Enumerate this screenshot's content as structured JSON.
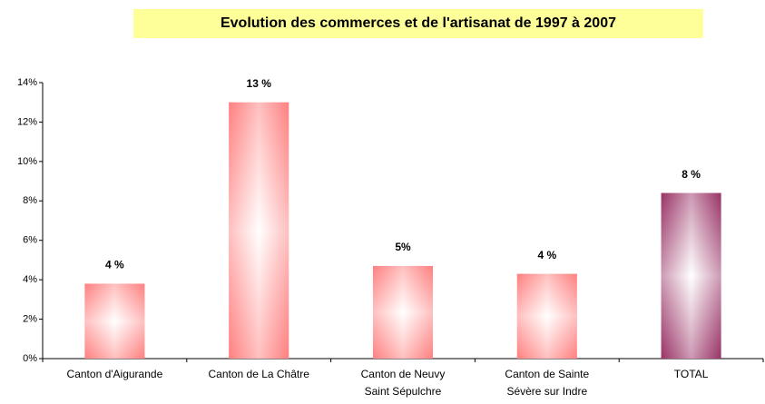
{
  "chart_data": {
    "type": "bar",
    "title": "Evolution des commerces et de l'artisanat de 1997 à 2007",
    "categories": [
      [
        "Canton d'Aigurande"
      ],
      [
        "Canton de La Châtre"
      ],
      [
        "Canton de Neuvy",
        "Saint Sépulchre"
      ],
      [
        "Canton de Sainte",
        "Sévère sur Indre"
      ],
      [
        "TOTAL"
      ]
    ],
    "values": [
      3.8,
      13.0,
      4.7,
      4.3,
      8.4
    ],
    "value_labels": [
      "4 %",
      "13 %",
      "5%",
      "4 %",
      "8 %"
    ],
    "colors": [
      "#ff8080",
      "#ff8080",
      "#ff8080",
      "#ff8080",
      "#993366"
    ],
    "ylim": [
      0,
      14
    ],
    "yticks": [
      {
        "value": 0,
        "label": "0%"
      },
      {
        "value": 2,
        "label": "2%"
      },
      {
        "value": 4,
        "label": "4%"
      },
      {
        "value": 6,
        "label": "6%"
      },
      {
        "value": 8,
        "label": "8%"
      },
      {
        "value": 10,
        "label": "10%"
      },
      {
        "value": 12,
        "label": "12%"
      },
      {
        "value": 14,
        "label": "14%"
      }
    ],
    "grid": false
  }
}
